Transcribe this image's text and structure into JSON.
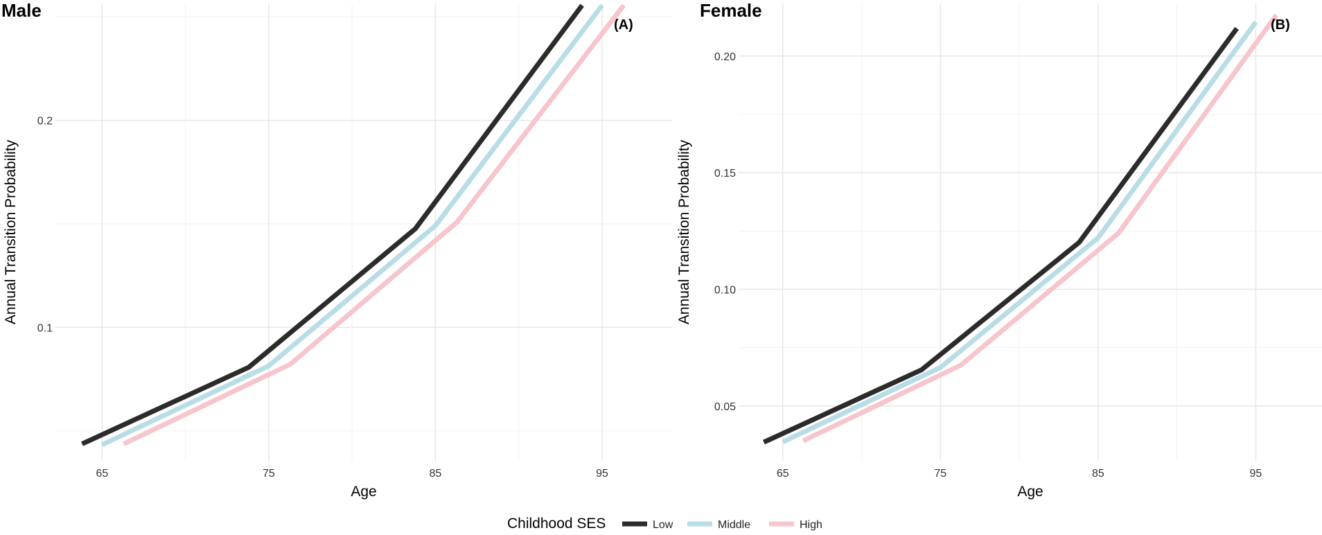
{
  "chart_data": [
    {
      "type": "line",
      "title": "Male",
      "tag": "(A)",
      "xlabel": "Age",
      "ylabel": "Annual Transition Probability",
      "xlim": [
        62.2,
        99.2
      ],
      "ylim": [
        0.0355,
        0.2565
      ],
      "x_major_ticks": [
        65,
        75,
        85,
        95
      ],
      "x_minor_ticks": [
        70,
        80,
        90
      ],
      "y_major_ticks": [
        0.1,
        0.2
      ],
      "y_minor_ticks": [
        0.05,
        0.15,
        0.25
      ],
      "x_tick_labels": [
        "65",
        "75",
        "85",
        "95"
      ],
      "y_tick_labels": [
        "0.1",
        "0.2"
      ],
      "series": [
        {
          "name": "Low",
          "color": "#2b2b2b",
          "x": [
            63.8,
            73.8,
            83.8,
            93.8
          ],
          "y": [
            0.0437,
            0.0807,
            0.1477,
            0.2556
          ]
        },
        {
          "name": "Middle",
          "color": "#b9dde6",
          "x": [
            65.0,
            75.0,
            85.0,
            95.0
          ],
          "y": [
            0.0433,
            0.0814,
            0.1491,
            0.2556
          ]
        },
        {
          "name": "High",
          "color": "#f7c6cd",
          "x": [
            66.3,
            76.3,
            86.3,
            96.3
          ],
          "y": [
            0.0437,
            0.0822,
            0.1509,
            0.2556
          ]
        }
      ]
    },
    {
      "type": "line",
      "title": "Female",
      "tag": "(B)",
      "xlabel": "Age",
      "ylabel": "Annual Transition Probability",
      "xlim": [
        62.2,
        99.2
      ],
      "ylim": [
        0.0265,
        0.2225
      ],
      "x_major_ticks": [
        65,
        75,
        85,
        95
      ],
      "x_minor_ticks": [
        70,
        80,
        90
      ],
      "y_major_ticks": [
        0.05,
        0.1,
        0.15,
        0.2
      ],
      "y_minor_ticks": [
        0.075,
        0.125,
        0.175
      ],
      "x_tick_labels": [
        "65",
        "75",
        "85",
        "95"
      ],
      "y_tick_labels": [
        "0.05",
        "0.10",
        "0.15",
        "0.20"
      ],
      "series": [
        {
          "name": "Low",
          "color": "#2b2b2b",
          "x": [
            63.8,
            73.8,
            83.8,
            93.8
          ],
          "y": [
            0.0345,
            0.0655,
            0.1201,
            0.2118
          ]
        },
        {
          "name": "Middle",
          "color": "#b9dde6",
          "x": [
            65.0,
            75.0,
            85.0,
            95.0
          ],
          "y": [
            0.0346,
            0.0665,
            0.1221,
            0.2145
          ]
        },
        {
          "name": "High",
          "color": "#f7c6cd",
          "x": [
            66.3,
            76.3,
            86.3,
            96.3
          ],
          "y": [
            0.0351,
            0.0675,
            0.1241,
            0.2175
          ]
        }
      ]
    }
  ],
  "legend": {
    "title": "Childhood SES",
    "entries": [
      {
        "label": "Low",
        "color": "#2b2b2b"
      },
      {
        "label": "Middle",
        "color": "#b9dde6"
      },
      {
        "label": "High",
        "color": "#f7c6cd"
      }
    ]
  }
}
